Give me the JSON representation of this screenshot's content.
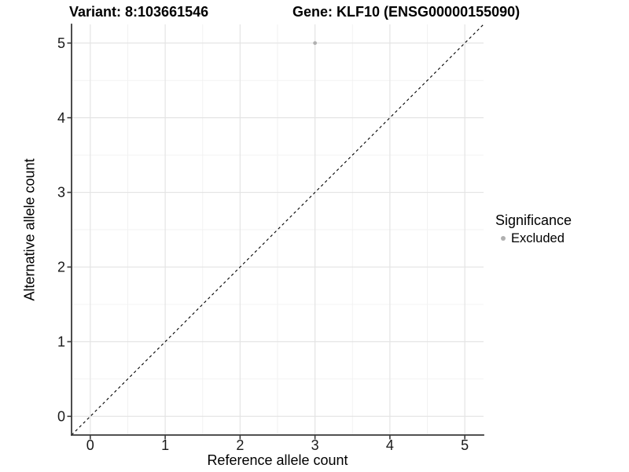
{
  "chart_data": {
    "type": "scatter",
    "titles": {
      "left": "Variant: 8:103661546",
      "right": "Gene: KLF10 (ENSG00000155090)"
    },
    "xlabel": "Reference allele count",
    "ylabel": "Alternative allele count",
    "xlim": [
      -0.25,
      5.25
    ],
    "ylim": [
      -0.25,
      5.25
    ],
    "xticks": [
      0,
      1,
      2,
      3,
      4,
      5
    ],
    "yticks": [
      0,
      1,
      2,
      3,
      4,
      5
    ],
    "minor_ticks": [
      0.5,
      1.5,
      2.5,
      3.5,
      4.5
    ],
    "grid": "major+minor",
    "series": [
      {
        "name": "Excluded",
        "color": "#b0b0b0",
        "points": [
          {
            "x": 3,
            "y": 5
          }
        ]
      }
    ],
    "reference_line": {
      "style": "dashed",
      "slope": 1,
      "intercept": 0,
      "color": "#000000"
    },
    "legend": {
      "title": "Significance",
      "position": "right",
      "items": [
        {
          "label": "Excluded",
          "color": "#b0b0b0"
        }
      ]
    }
  },
  "styles": {
    "background": "#ffffff",
    "grid_major": "#e4e4e4",
    "grid_minor": "#f1f1f1",
    "axis_line": "#3a3a3a",
    "tick_label": "#1a1a1a",
    "title_color": "#000000"
  }
}
